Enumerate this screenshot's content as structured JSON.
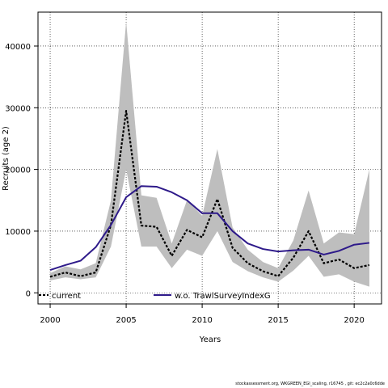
{
  "chart_data": {
    "type": "line",
    "xlabel": "Years",
    "ylabel": "Recruits (age 2)",
    "xlim": [
      1999.2,
      2021.8
    ],
    "ylim": [
      -1800,
      45500
    ],
    "x_ticks": [
      2000,
      2005,
      2010,
      2015,
      2020
    ],
    "y_ticks": [
      0,
      10000,
      20000,
      30000,
      40000
    ],
    "grid": true,
    "legend_position": "bottom",
    "x": [
      2000,
      2001,
      2002,
      2003,
      2004,
      2005,
      2006,
      2007,
      2008,
      2009,
      2010,
      2011,
      2012,
      2013,
      2014,
      2015,
      2016,
      2017,
      2018,
      2019,
      2020,
      2021
    ],
    "band": {
      "upper": [
        3200,
        4300,
        3800,
        4800,
        15000,
        44000,
        15800,
        15400,
        8000,
        15000,
        12500,
        23300,
        10600,
        7000,
        5000,
        4000,
        8500,
        16600,
        8000,
        9800,
        9500,
        20000
      ],
      "lower": [
        2000,
        2500,
        2200,
        2500,
        7500,
        20000,
        7500,
        7500,
        4000,
        7000,
        6000,
        10000,
        5000,
        3500,
        2500,
        1800,
        3600,
        6000,
        2600,
        3000,
        1800,
        1000
      ]
    },
    "series": [
      {
        "name": "current",
        "color": "#000000",
        "style": "dashed",
        "values": [
          2600,
          3300,
          2700,
          3300,
          11000,
          29500,
          10900,
          10700,
          6000,
          10200,
          9000,
          15200,
          7300,
          4800,
          3500,
          2700,
          5700,
          10000,
          4800,
          5400,
          4000,
          4500
        ]
      },
      {
        "name": "w.o. TrawlSurveyIndexG",
        "color": "#2e1a8a",
        "style": "solid",
        "values": [
          3700,
          4500,
          5200,
          7400,
          11000,
          15500,
          17300,
          17200,
          16300,
          15000,
          12900,
          12900,
          10000,
          8000,
          7100,
          6700,
          6900,
          7000,
          6200,
          6800,
          7800,
          8100
        ]
      }
    ],
    "band_color": "#bebebe"
  },
  "footer_text": "stockassessment.org, WKGREEN_EGI_scaling, r16745 , git: ec2c2a0c6dde"
}
